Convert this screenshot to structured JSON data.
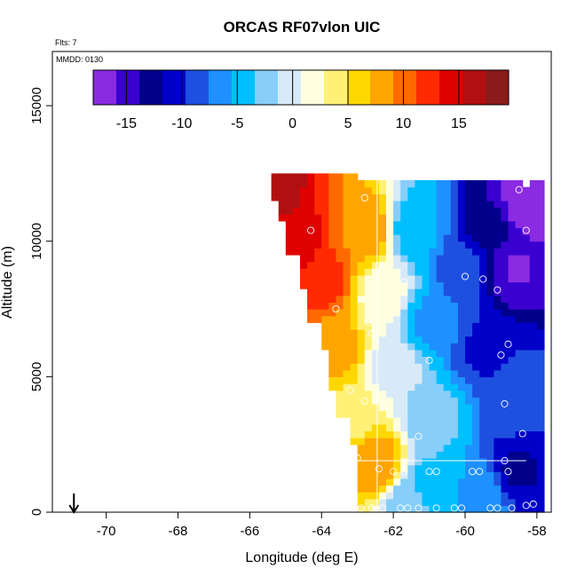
{
  "chart_data": {
    "type": "heatmap",
    "title": "ORCAS RF07vlon UIC",
    "xlabel": "Longitude (deg E)",
    "ylabel": "Altitude (m)",
    "note_flts": "Flts: 7",
    "note_mmdd": "MMDD: 0130",
    "xlim": [
      -71.5,
      -57.6
    ],
    "ylim": [
      0,
      17000
    ],
    "xticks": [
      -70,
      -68,
      -66,
      -64,
      -62,
      -60,
      -58
    ],
    "xtick_labels": [
      "-70",
      "-68",
      "-66",
      "-64",
      "-62",
      "-60",
      "-58"
    ],
    "yticks": [
      0,
      5000,
      10000,
      15000
    ],
    "ytick_labels": [
      "0",
      "5000",
      "10000",
      "15000"
    ],
    "colorbar": {
      "range": [
        -18,
        19.5
      ],
      "ticks": [
        -15,
        -10,
        -5,
        0,
        5,
        10,
        15
      ],
      "tick_labels": [
        "-15",
        "-10",
        "-5",
        "0",
        "5",
        "10",
        "15"
      ],
      "colors": [
        "#8a2be2",
        "#3a00d0",
        "#00008b",
        "#0000c8",
        "#1e50e0",
        "#1e90ff",
        "#00bfff",
        "#87cefa",
        "#d8eaf8",
        "#ffffe0",
        "#fff176",
        "#ffd700",
        "#ffa500",
        "#ff6a00",
        "#ff2a00",
        "#e00000",
        "#b01010",
        "#8b1a1a"
      ]
    },
    "arrow_marker_x": -70.9,
    "grid": false,
    "profiles": [
      {
        "lon_west": -65.5,
        "base": 12400,
        "top": 12550,
        "value": 19
      },
      {
        "lon_west": -65.4,
        "base": 11600,
        "top": 12500,
        "value": 17
      },
      {
        "lon_west": -65.1,
        "base": 10800,
        "top": 12500,
        "value": 16
      },
      {
        "lon_west": -64.9,
        "base": 9500,
        "top": 12500,
        "value": 15
      },
      {
        "lon_west": -64.6,
        "base": 8300,
        "top": 12500,
        "value": 14
      },
      {
        "lon_west": -64.3,
        "base": 7000,
        "top": 12500,
        "value": 13
      },
      {
        "lon_west": -64.05,
        "base": 5900,
        "top": 12500,
        "value": 12
      },
      {
        "lon_west": -63.8,
        "base": 4500,
        "top": 12500,
        "value": 11
      },
      {
        "lon_west": -63.5,
        "base": 3500,
        "top": 12500,
        "value": 10
      },
      {
        "lon_west": -63.25,
        "base": 2600,
        "top": 12450,
        "value": 9
      },
      {
        "lon_west": -63.0,
        "base": 50,
        "top": 12300,
        "value": 8
      }
    ],
    "field": {
      "lon_range": [
        -66.0,
        -57.8
      ],
      "alt_range": [
        0,
        12500
      ],
      "anchors": [
        {
          "lon": -65.6,
          "alt": 12000,
          "value": 17
        },
        {
          "lon": -64.8,
          "alt": 10000,
          "value": 15
        },
        {
          "lon": -64.0,
          "alt": 8500,
          "value": 12
        },
        {
          "lon": -63.6,
          "alt": 6000,
          "value": 8
        },
        {
          "lon": -63.3,
          "alt": 3500,
          "value": 4
        },
        {
          "lon": -62.5,
          "alt": 1800,
          "value": 9
        },
        {
          "lon": -62.8,
          "alt": 10500,
          "value": 9
        },
        {
          "lon": -62.3,
          "alt": 8000,
          "value": 2
        },
        {
          "lon": -62.0,
          "alt": 5500,
          "value": 0
        },
        {
          "lon": -61.4,
          "alt": 10500,
          "value": -5
        },
        {
          "lon": -61.0,
          "alt": 7000,
          "value": -6
        },
        {
          "lon": -60.8,
          "alt": 3500,
          "value": -3
        },
        {
          "lon": -60.0,
          "alt": 9000,
          "value": -9
        },
        {
          "lon": -59.2,
          "alt": 10500,
          "value": -13
        },
        {
          "lon": -58.6,
          "alt": 9000,
          "value": -16
        },
        {
          "lon": -58.4,
          "alt": 11200,
          "value": -17
        },
        {
          "lon": -59.5,
          "alt": 6000,
          "value": -10
        },
        {
          "lon": -58.7,
          "alt": 4000,
          "value": -9
        },
        {
          "lon": -61.0,
          "alt": 1000,
          "value": -4
        },
        {
          "lon": -59.5,
          "alt": 800,
          "value": -6
        },
        {
          "lon": -58.6,
          "alt": 1500,
          "value": -12
        },
        {
          "lon": -61.5,
          "alt": 300,
          "value": -3
        }
      ]
    },
    "obs_points": [
      {
        "lon": -62.8,
        "alt": 11600
      },
      {
        "lon": -58.5,
        "alt": 11900
      },
      {
        "lon": -64.3,
        "alt": 10400
      },
      {
        "lon": -58.3,
        "alt": 10400
      },
      {
        "lon": -62.4,
        "alt": 9100
      },
      {
        "lon": -61.7,
        "alt": 8500
      },
      {
        "lon": -60.0,
        "alt": 8700
      },
      {
        "lon": -59.5,
        "alt": 8600
      },
      {
        "lon": -59.1,
        "alt": 8200
      },
      {
        "lon": -63.6,
        "alt": 7500
      },
      {
        "lon": -62.7,
        "alt": 7000
      },
      {
        "lon": -62.6,
        "alt": 6600
      },
      {
        "lon": -58.8,
        "alt": 6200
      },
      {
        "lon": -59.0,
        "alt": 5800
      },
      {
        "lon": -61.0,
        "alt": 5600
      },
      {
        "lon": -63.2,
        "alt": 4500
      },
      {
        "lon": -62.8,
        "alt": 4100
      },
      {
        "lon": -58.9,
        "alt": 4000
      },
      {
        "lon": -58.4,
        "alt": 2900
      },
      {
        "lon": -61.3,
        "alt": 2800
      },
      {
        "lon": -63.0,
        "alt": 2000
      },
      {
        "lon": -58.9,
        "alt": 1900
      },
      {
        "lon": -62.4,
        "alt": 1600
      },
      {
        "lon": -62.0,
        "alt": 1500
      },
      {
        "lon": -61.7,
        "alt": 1500
      },
      {
        "lon": -61.0,
        "alt": 1500
      },
      {
        "lon": -60.8,
        "alt": 1500
      },
      {
        "lon": -59.8,
        "alt": 1500
      },
      {
        "lon": -59.6,
        "alt": 1500
      },
      {
        "lon": -58.8,
        "alt": 1500
      },
      {
        "lon": -62.9,
        "alt": 150
      },
      {
        "lon": -62.6,
        "alt": 150
      },
      {
        "lon": -62.3,
        "alt": 150
      },
      {
        "lon": -61.8,
        "alt": 150
      },
      {
        "lon": -61.6,
        "alt": 150
      },
      {
        "lon": -61.3,
        "alt": 150
      },
      {
        "lon": -60.8,
        "alt": 150
      },
      {
        "lon": -60.3,
        "alt": 150
      },
      {
        "lon": -60.1,
        "alt": 150
      },
      {
        "lon": -59.3,
        "alt": 150
      },
      {
        "lon": -59.1,
        "alt": 150
      },
      {
        "lon": -58.7,
        "alt": 150
      },
      {
        "lon": -58.3,
        "alt": 250
      },
      {
        "lon": -58.1,
        "alt": 300
      }
    ]
  }
}
